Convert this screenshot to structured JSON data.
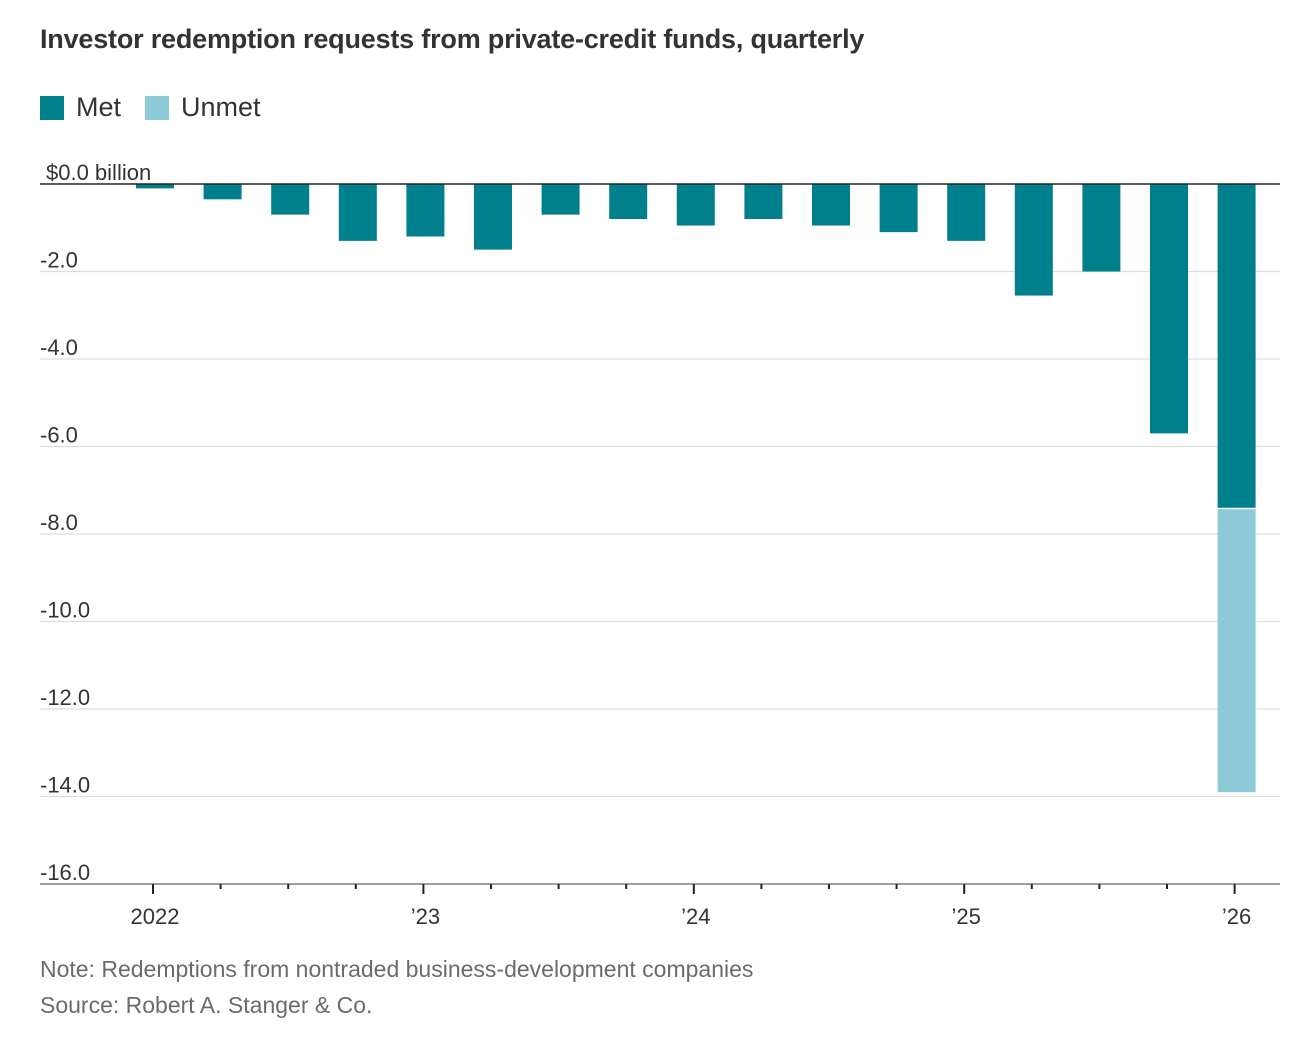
{
  "header": {
    "title": "Investor redemption requests from private-credit funds, quarterly"
  },
  "legend": [
    {
      "label": "Met",
      "color": "#00808c"
    },
    {
      "label": "Unmet",
      "color": "#8ccad8"
    }
  ],
  "footer": {
    "note": "Note: Redemptions from nontraded business-development companies",
    "source": "Source: Robert A. Stanger & Co."
  },
  "chart_data": {
    "type": "bar",
    "stacked": true,
    "title": "Investor redemption requests from private-credit funds, quarterly",
    "xlabel": "",
    "ylabel": "",
    "ylim": [
      -16.0,
      0.0
    ],
    "grid": true,
    "legend_position": "top-left",
    "y_ticks": [
      {
        "value": 0,
        "label": "$0.0 billion"
      },
      {
        "value": -2,
        "label": "-2.0"
      },
      {
        "value": -4,
        "label": "-4.0"
      },
      {
        "value": -6,
        "label": "-6.0"
      },
      {
        "value": -8,
        "label": "-8.0"
      },
      {
        "value": -10,
        "label": "-10.0"
      },
      {
        "value": -12,
        "label": "-12.0"
      },
      {
        "value": -14,
        "label": "-14.0"
      },
      {
        "value": -16,
        "label": "-16.0"
      }
    ],
    "x_tick_labels": [
      {
        "quarter_index": 0,
        "label": "2022"
      },
      {
        "quarter_index": 4,
        "label": "’23"
      },
      {
        "quarter_index": 8,
        "label": "’24"
      },
      {
        "quarter_index": 12,
        "label": "’25"
      },
      {
        "quarter_index": 16,
        "label": "’26"
      }
    ],
    "categories": [
      "Q1 2022",
      "Q2 2022",
      "Q3 2022",
      "Q4 2022",
      "Q1 2023",
      "Q2 2023",
      "Q3 2023",
      "Q4 2023",
      "Q1 2024",
      "Q2 2024",
      "Q3 2024",
      "Q4 2024",
      "Q1 2025",
      "Q2 2025",
      "Q3 2025",
      "Q4 2025",
      "Q1 2026"
    ],
    "series": [
      {
        "name": "Met",
        "color": "#00808c",
        "values": [
          -0.1,
          -0.35,
          -0.7,
          -1.3,
          -1.2,
          -1.5,
          -0.7,
          -0.8,
          -0.95,
          -0.8,
          -0.95,
          -1.1,
          -1.3,
          -2.55,
          -2.0,
          -5.7,
          -7.4
        ]
      },
      {
        "name": "Unmet",
        "color": "#8ccad8",
        "values": [
          0,
          0,
          0,
          0,
          0,
          0,
          0,
          0,
          0,
          0,
          0,
          0,
          0,
          0,
          0,
          0,
          -6.5
        ]
      }
    ]
  }
}
